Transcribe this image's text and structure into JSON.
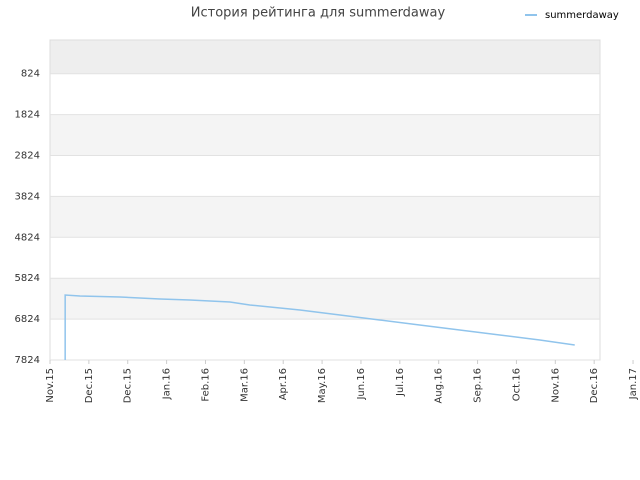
{
  "chart_data": {
    "type": "line",
    "title": "История рейтинга для summerdaway",
    "legend": "top-right",
    "grid": true,
    "y_inverted": true,
    "x": [
      0.39,
      0.39,
      0.77,
      1.8,
      2.83,
      3.6,
      4.63,
      5.14,
      6.43,
      7.46,
      8.48,
      9.51,
      10.54,
      11.57,
      12.6,
      13.5
    ],
    "series": [
      {
        "name": "summerdaway",
        "color": "#90c4ec",
        "values": [
          7824,
          6235,
          6259,
          6284,
          6333,
          6357,
          6406,
          6479,
          6602,
          6724,
          6846,
          6968,
          7091,
          7213,
          7335,
          7457
        ]
      }
    ],
    "xlim": [
      0,
      14.15
    ],
    "xticks": [
      {
        "value": 0,
        "label": "Nov.15"
      },
      {
        "value": 1,
        "label": "Dec.15"
      },
      {
        "value": 2,
        "label": "Dec.15"
      },
      {
        "value": 3,
        "label": "Jan.16"
      },
      {
        "value": 4,
        "label": "Feb.16"
      },
      {
        "value": 5,
        "label": "Mar.16"
      },
      {
        "value": 6,
        "label": "Apr.16"
      },
      {
        "value": 7,
        "label": "May.16"
      },
      {
        "value": 8,
        "label": "Jun.16"
      },
      {
        "value": 9,
        "label": "Jul.16"
      },
      {
        "value": 10,
        "label": "Aug.16"
      },
      {
        "value": 11,
        "label": "Sep.16"
      },
      {
        "value": 12,
        "label": "Oct.16"
      },
      {
        "value": 13,
        "label": "Nov.16"
      },
      {
        "value": 14,
        "label": "Dec.16"
      },
      {
        "value": 15,
        "label": "Jan.17"
      }
    ],
    "ylim": [
      7824,
      0
    ],
    "yticks": [
      824,
      1824,
      2824,
      3824,
      4824,
      5824,
      6824,
      7824
    ]
  }
}
